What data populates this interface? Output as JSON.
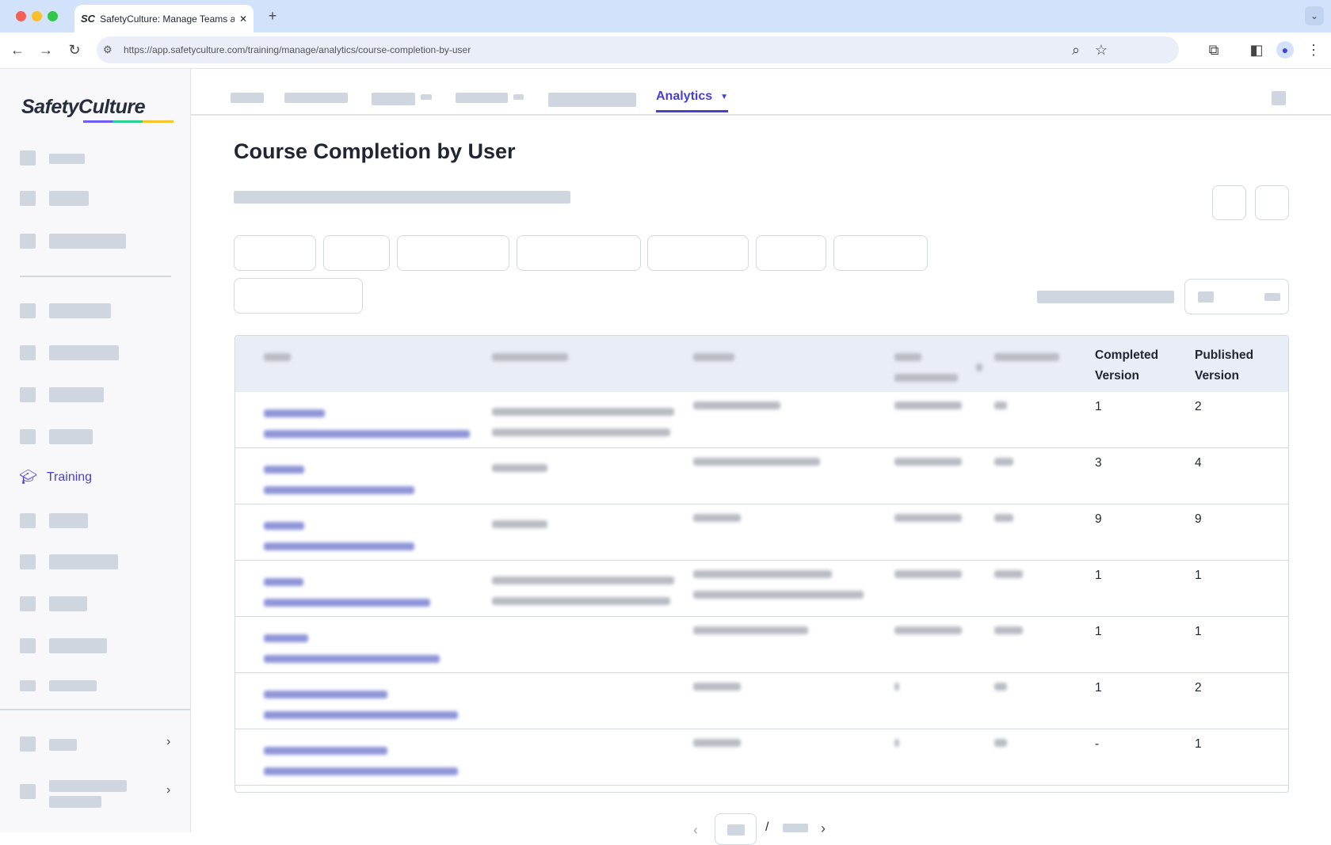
{
  "browser": {
    "tab_title": "SafetyCulture: Manage Teams and...",
    "tab_favicon": "SC",
    "url": "https://app.safetyculture.com/training/manage/analytics/course-completion-by-user"
  },
  "sidebar": {
    "logo": "SafetyCulture",
    "active_item": "Training",
    "accent": "#4740d4"
  },
  "nav": {
    "active_tab": "Analytics"
  },
  "page": {
    "title": "Course Completion by User"
  },
  "table": {
    "headers": [
      "Completed Version",
      "Published Version"
    ],
    "rows": [
      {
        "completed_version": "1",
        "published_version": "2"
      },
      {
        "completed_version": "3",
        "published_version": "4"
      },
      {
        "completed_version": "9",
        "published_version": "9"
      },
      {
        "completed_version": "1",
        "published_version": "1"
      },
      {
        "completed_version": "1",
        "published_version": "1"
      },
      {
        "completed_version": "1",
        "published_version": "2"
      },
      {
        "completed_version": "-",
        "published_version": "1"
      }
    ]
  },
  "pagination": {
    "separator": "/"
  }
}
